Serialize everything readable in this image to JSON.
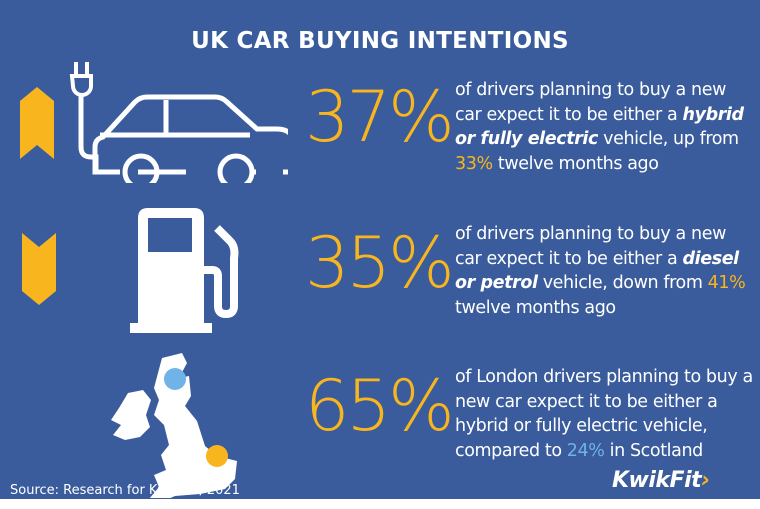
{
  "title": "UK CAR BUYING INTENTIONS",
  "rows": [
    {
      "pct": "37%",
      "trend": "up",
      "icon": "electric-car-icon",
      "t1": "of drivers planning to buy a new car expect it to be either a ",
      "e1": "hybrid or fully electric",
      "t2": " vehicle, up from ",
      "h": "33%",
      "t3": " twelve months ago"
    },
    {
      "pct": "35%",
      "trend": "down",
      "icon": "fuel-pump-icon",
      "t1": "of drivers planning to buy a new car expect it to be either a ",
      "e1": "diesel or petrol",
      "t2": " vehicle, down from ",
      "h": "41%",
      "t3": " twelve months ago"
    },
    {
      "pct": "65%",
      "icon": "uk-map-icon",
      "t1": "of London drivers planning to buy a new car expect it to be either a hybrid or fully electric vehicle, compared to ",
      "h": "24%",
      "t3": " in Scotland"
    }
  ],
  "source": "Source: Research for Kwik Fit, 2021",
  "logo": {
    "text": "KwikFit",
    "chevron": "›"
  },
  "colors": {
    "background": "#3a5c9c",
    "accent": "#f9b51d",
    "scotland": "#6fb3e8"
  }
}
